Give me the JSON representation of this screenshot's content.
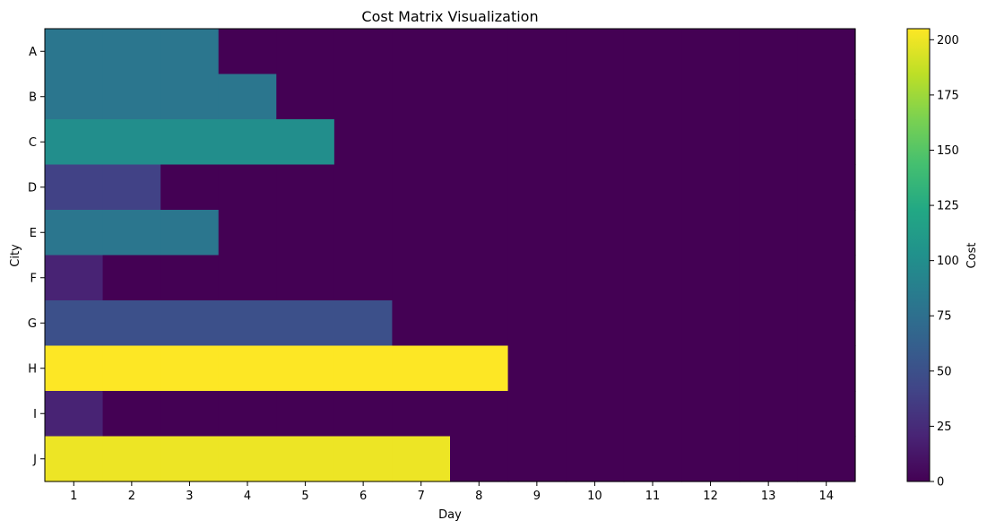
{
  "chart_data": {
    "type": "heatmap",
    "title": "Cost Matrix Visualization",
    "xlabel": "Day",
    "ylabel": "City",
    "x": [
      "1",
      "2",
      "3",
      "4",
      "5",
      "6",
      "7",
      "8",
      "9",
      "10",
      "11",
      "12",
      "13",
      "14"
    ],
    "y": [
      "A",
      "B",
      "C",
      "D",
      "E",
      "F",
      "G",
      "H",
      "I",
      "J"
    ],
    "values": [
      [
        80,
        80,
        80,
        0,
        0,
        0,
        0,
        0,
        0,
        0,
        0,
        0,
        0,
        0
      ],
      [
        80,
        80,
        80,
        80,
        0,
        0,
        0,
        0,
        0,
        0,
        0,
        0,
        0,
        0
      ],
      [
        100,
        100,
        100,
        100,
        100,
        0,
        0,
        0,
        0,
        0,
        0,
        0,
        0,
        0
      ],
      [
        40,
        40,
        0,
        0,
        0,
        0,
        0,
        0,
        0,
        0,
        0,
        0,
        0,
        0
      ],
      [
        80,
        80,
        80,
        0,
        0,
        0,
        0,
        0,
        0,
        0,
        0,
        0,
        0,
        0
      ],
      [
        20,
        0,
        0,
        0,
        0,
        0,
        0,
        0,
        0,
        0,
        0,
        0,
        0,
        0
      ],
      [
        50,
        50,
        50,
        50,
        50,
        50,
        0,
        0,
        0,
        0,
        0,
        0,
        0,
        0
      ],
      [
        205,
        205,
        205,
        205,
        205,
        205,
        205,
        205,
        0,
        0,
        0,
        0,
        0,
        0
      ],
      [
        20,
        0,
        0,
        0,
        0,
        0,
        0,
        0,
        0,
        0,
        0,
        0,
        0,
        0
      ],
      [
        200,
        200,
        200,
        200,
        200,
        200,
        200,
        0,
        0,
        0,
        0,
        0,
        0,
        0
      ]
    ],
    "colorbar": {
      "label": "Cost",
      "range": [
        0,
        205
      ],
      "ticks": [
        "0",
        "25",
        "50",
        "75",
        "100",
        "125",
        "150",
        "175",
        "200"
      ],
      "colormap": "viridis"
    },
    "grid": false
  }
}
